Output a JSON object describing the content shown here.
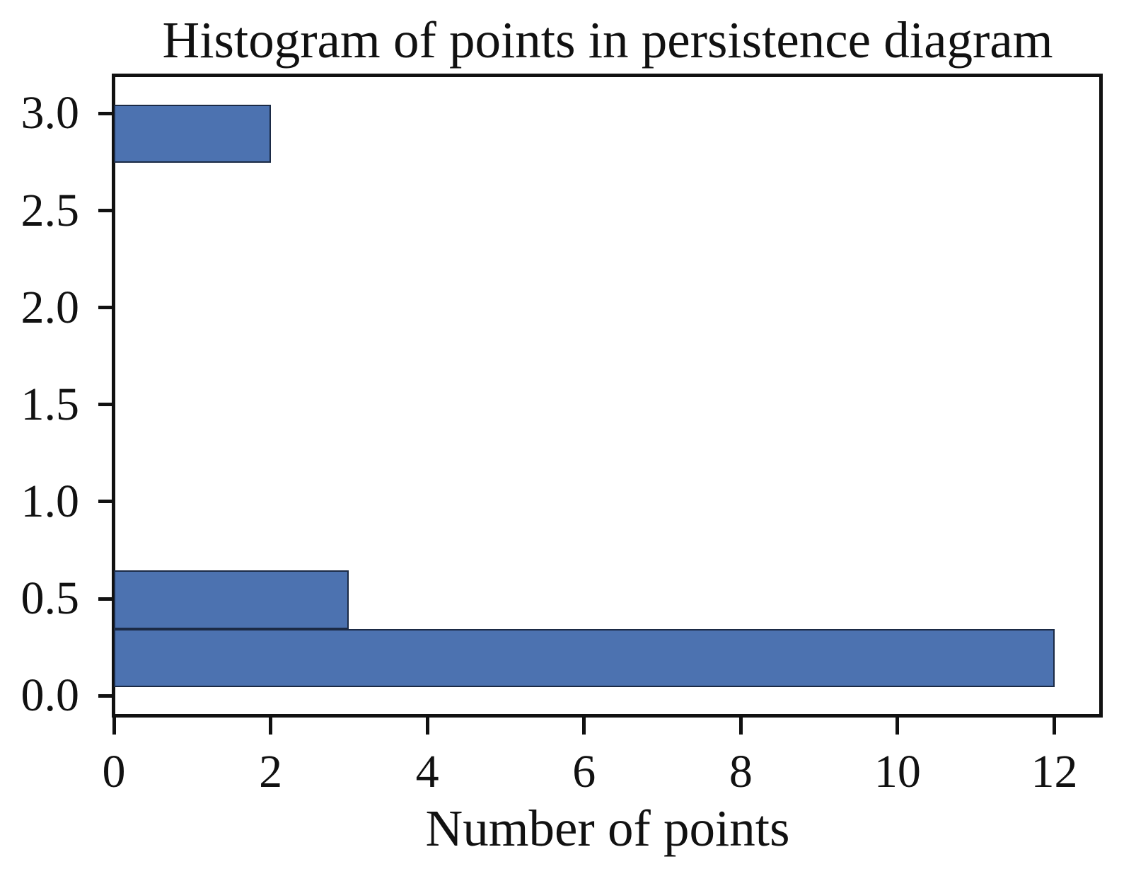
{
  "chart": {
    "title": "Histogram of points in persistence diagram",
    "xlabel": "Number of points"
  },
  "chart_data": {
    "type": "bar",
    "subtype": "horizontal_histogram",
    "title": "Histogram of points in persistence diagram",
    "xlabel": "Number of points",
    "ylabel": "",
    "orientation": "horizontal",
    "bin_edges": [
      0.045,
      0.345,
      0.645,
      0.945,
      1.245,
      1.545,
      1.845,
      2.145,
      2.445,
      2.745,
      3.045
    ],
    "counts": [
      12,
      3,
      0,
      0,
      0,
      0,
      0,
      0,
      0,
      2
    ],
    "xlim": [
      0,
      12.6
    ],
    "ylim": [
      -0.105,
      3.195
    ],
    "x_ticks": [
      0,
      2,
      4,
      6,
      8,
      10,
      12
    ],
    "x_tick_labels": [
      "0",
      "2",
      "4",
      "6",
      "8",
      "10",
      "12"
    ],
    "y_ticks": [
      0.0,
      0.5,
      1.0,
      1.5,
      2.0,
      2.5,
      3.0
    ],
    "y_tick_labels": [
      "0.0",
      "0.5",
      "1.0",
      "1.5",
      "2.0",
      "2.5",
      "3.0"
    ],
    "grid": false,
    "legend": false,
    "colors": {
      "bar_fill": "#4c72b0",
      "bar_edge": "#1b2a45",
      "axis": "#111111",
      "text": "#111111",
      "background": "#ffffff"
    }
  }
}
